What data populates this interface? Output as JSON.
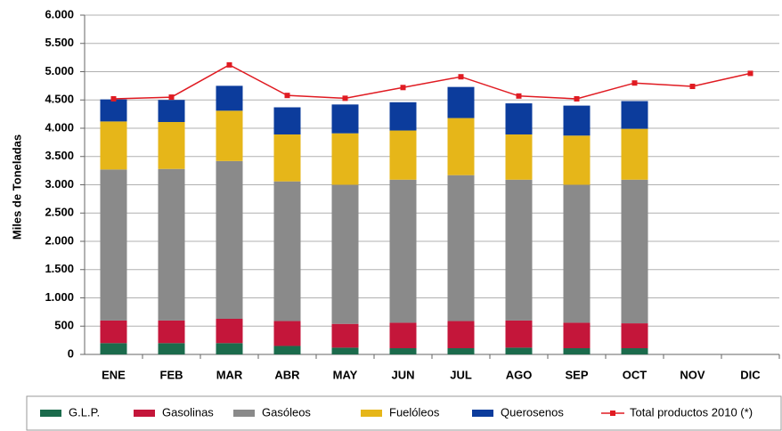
{
  "chart_data": {
    "type": "bar",
    "stacked": true,
    "y_label": "Miles de Toneladas",
    "categories": [
      "ENE",
      "FEB",
      "MAR",
      "ABR",
      "MAY",
      "JUN",
      "JUL",
      "AGO",
      "SEP",
      "OCT",
      "NOV",
      "DIC"
    ],
    "series": [
      {
        "name": "G.L.P.",
        "type": "bar",
        "color": "#1b6b4c",
        "values": [
          200,
          200,
          200,
          150,
          120,
          110,
          110,
          120,
          110,
          110,
          null,
          null
        ]
      },
      {
        "name": "Gasolinas",
        "type": "bar",
        "color": "#c4163a",
        "values": [
          400,
          400,
          430,
          440,
          420,
          450,
          480,
          480,
          450,
          440,
          null,
          null
        ]
      },
      {
        "name": "Gasóleos",
        "type": "bar",
        "color": "#8a8a8a",
        "values": [
          2670,
          2680,
          2790,
          2470,
          2460,
          2530,
          2580,
          2490,
          2440,
          2540,
          null,
          null
        ]
      },
      {
        "name": "Fuelóleos",
        "type": "bar",
        "color": "#e6b619",
        "values": [
          850,
          830,
          890,
          830,
          910,
          870,
          1010,
          800,
          870,
          900,
          null,
          null
        ]
      },
      {
        "name": "Querosenos",
        "type": "bar",
        "color": "#0c3c9c",
        "values": [
          390,
          390,
          440,
          480,
          510,
          500,
          550,
          550,
          530,
          490,
          null,
          null
        ]
      },
      {
        "name": "Total productos 2010 (*)",
        "type": "line",
        "color": "#e01b22",
        "values": [
          4520,
          4550,
          5120,
          4580,
          4530,
          4720,
          4910,
          4570,
          4520,
          4800,
          4740,
          4970
        ]
      }
    ],
    "ylim": [
      0,
      6000
    ],
    "yticks": [
      0,
      500,
      {
        "value": 1000,
        "label": "1.000"
      },
      {
        "value": 1500,
        "label": "1.500"
      },
      {
        "value": 2000,
        "label": "2.000"
      },
      {
        "value": 2500,
        "label": "2.500"
      },
      {
        "value": 3000,
        "label": "3.000"
      },
      {
        "value": 3500,
        "label": "3.500"
      },
      {
        "value": 4000,
        "label": "4.000"
      },
      {
        "value": 4500,
        "label": "4.500"
      },
      {
        "value": 5000,
        "label": "5.000"
      },
      {
        "value": 5500,
        "label": "5.500"
      },
      {
        "value": 6000,
        "label": "6.000"
      }
    ],
    "grid": true,
    "legend": "bottom"
  }
}
